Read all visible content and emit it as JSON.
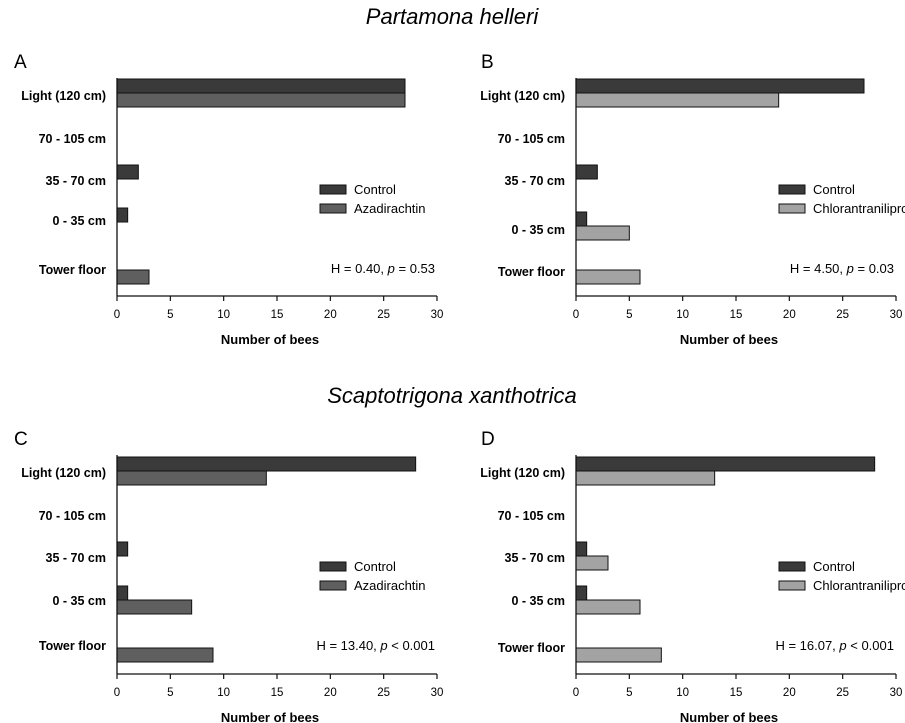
{
  "titles": {
    "top": "Partamona helleri",
    "bottom": "Scaptotrigona xanthotrica"
  },
  "colors": {
    "control": "#3a3a3a",
    "azadirachtin": "#5f5f5f",
    "chlorantraniliprole": "#a3a3a3",
    "edge": "#111111"
  },
  "chart_data": [
    {
      "id": "A",
      "type": "bar",
      "orientation": "horizontal",
      "letter": "A",
      "categories": [
        "Light (120 cm)",
        "70 - 105 cm",
        "35 - 70 cm",
        "0 - 35 cm",
        "Tower floor"
      ],
      "series": [
        {
          "name": "Control",
          "values": [
            27,
            0,
            2,
            1,
            0
          ]
        },
        {
          "name": "Azadirachtin",
          "values": [
            27,
            0,
            0,
            0,
            3
          ]
        }
      ],
      "xlabel": "Number of bees",
      "xlim": [
        0,
        30
      ],
      "xticks": [
        0,
        5,
        10,
        15,
        20,
        25,
        30
      ],
      "stat": {
        "prefix": "H = 0.40, ",
        "p_symbol": "p",
        "suffix": " = 0.53"
      }
    },
    {
      "id": "B",
      "type": "bar",
      "orientation": "horizontal",
      "letter": "B",
      "categories": [
        "Light (120 cm)",
        "70 - 105 cm",
        "35 - 70 cm",
        "0 - 35 cm",
        "Tower floor"
      ],
      "series": [
        {
          "name": "Control",
          "values": [
            27,
            0,
            2,
            1,
            0
          ]
        },
        {
          "name": "Chlorantraniliprole",
          "values": [
            19,
            0,
            0,
            5,
            6
          ]
        }
      ],
      "xlabel": "Number of bees",
      "xlim": [
        0,
        30
      ],
      "xticks": [
        0,
        5,
        10,
        15,
        20,
        25,
        30
      ],
      "stat": {
        "prefix": "H = 4.50, ",
        "p_symbol": "p",
        "suffix": " = 0.03"
      }
    },
    {
      "id": "C",
      "type": "bar",
      "orientation": "horizontal",
      "letter": "C",
      "categories": [
        "Light (120 cm)",
        "70 - 105 cm",
        "35 - 70 cm",
        "0 - 35 cm",
        "Tower floor"
      ],
      "series": [
        {
          "name": "Control",
          "values": [
            28,
            0,
            1,
            1,
            0
          ]
        },
        {
          "name": "Azadirachtin",
          "values": [
            14,
            0,
            0,
            7,
            9
          ]
        }
      ],
      "xlabel": "Number of bees",
      "xlim": [
        0,
        30
      ],
      "xticks": [
        0,
        5,
        10,
        15,
        20,
        25,
        30
      ],
      "stat": {
        "prefix": "H = 13.40, ",
        "p_symbol": "p",
        "suffix": " < 0.001"
      }
    },
    {
      "id": "D",
      "type": "bar",
      "orientation": "horizontal",
      "letter": "D",
      "categories": [
        "Light (120 cm)",
        "70 - 105 cm",
        "35 - 70 cm",
        "0 - 35 cm",
        "Tower floor"
      ],
      "series": [
        {
          "name": "Control",
          "values": [
            28,
            0,
            1,
            1,
            0
          ]
        },
        {
          "name": "Chlorantraniliprole",
          "values": [
            13,
            0,
            3,
            6,
            8
          ]
        }
      ],
      "xlabel": "Number of bees",
      "xlim": [
        0,
        30
      ],
      "xticks": [
        0,
        5,
        10,
        15,
        20,
        25,
        30
      ],
      "stat": {
        "prefix": "H = 16.07, ",
        "p_symbol": "p",
        "suffix": " < 0.001"
      }
    }
  ]
}
